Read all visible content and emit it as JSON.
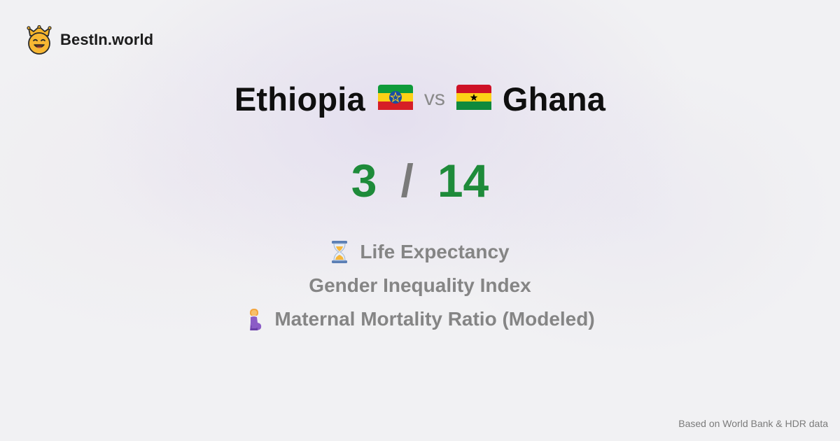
{
  "brand": {
    "name": "BestIn.world",
    "logo_icon": "crown-smiley-icon"
  },
  "comparison": {
    "left_country": "Ethiopia",
    "left_flag_icon": "ethiopia-flag-icon",
    "separator": "vs",
    "right_country": "Ghana",
    "right_flag_icon": "ghana-flag-icon"
  },
  "score": {
    "left": "3",
    "divider": "/",
    "right": "14",
    "color": "#1e8b3a"
  },
  "metrics": [
    {
      "icon": "hourglass-icon",
      "label": "Life Expectancy"
    },
    {
      "icon": "",
      "label": "Gender Inequality Index"
    },
    {
      "icon": "pregnant-woman-icon",
      "label": "Maternal Mortality Ratio (Modeled)"
    }
  ],
  "footer": {
    "source_note": "Based on World Bank & HDR data"
  }
}
